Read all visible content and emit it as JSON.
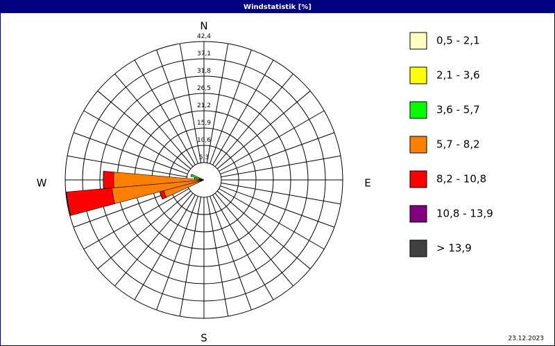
{
  "chart_data": {
    "type": "windrose",
    "title": "Windstatistik [%]",
    "date": "23.12.2023",
    "directions_labels": [
      "N",
      "E",
      "S",
      "W"
    ],
    "categories": [
      250,
      260,
      270,
      280,
      290
    ],
    "sector_width": 10,
    "ylim": [
      0,
      42.4
    ],
    "yticks": [
      {
        "value": 5.3,
        "label": "5,3"
      },
      {
        "value": 10.6,
        "label": "10,6"
      },
      {
        "value": 15.9,
        "label": "15,9"
      },
      {
        "value": 21.2,
        "label": "21,2"
      },
      {
        "value": 26.5,
        "label": "26,5"
      },
      {
        "value": 31.8,
        "label": "31,8"
      },
      {
        "value": 37.1,
        "label": "37,1"
      },
      {
        "value": 42.4,
        "label": "42,4"
      }
    ],
    "series": [
      {
        "name": "0,5 - 2,1",
        "color": "#ffffc0",
        "values": [
          0.3,
          0.3,
          0.3,
          0.3,
          0.2
        ]
      },
      {
        "name": "2,1 - 3,6",
        "color": "#ffff00",
        "values": [
          0.3,
          0.5,
          0.5,
          0.5,
          0.4
        ]
      },
      {
        "name": "3,6 - 5,7",
        "color": "#00ff00",
        "values": [
          0.5,
          0.8,
          0.8,
          0.6,
          3.5
        ]
      },
      {
        "name": "5,7 - 8,2",
        "color": "#ff8000",
        "values": [
          11.6,
          26.6,
          26.0,
          1.5,
          0
        ]
      },
      {
        "name": "8,2 - 10,8",
        "color": "#ff0000",
        "values": [
          1.3,
          14.0,
          3.2,
          0,
          0
        ]
      },
      {
        "name": "10,8 - 13,9",
        "color": "#800080",
        "values": [
          0,
          0,
          0,
          0,
          0
        ]
      },
      {
        "name": "> 13,9",
        "color": "#404040",
        "values": [
          0,
          0,
          0,
          0,
          0
        ]
      }
    ]
  }
}
